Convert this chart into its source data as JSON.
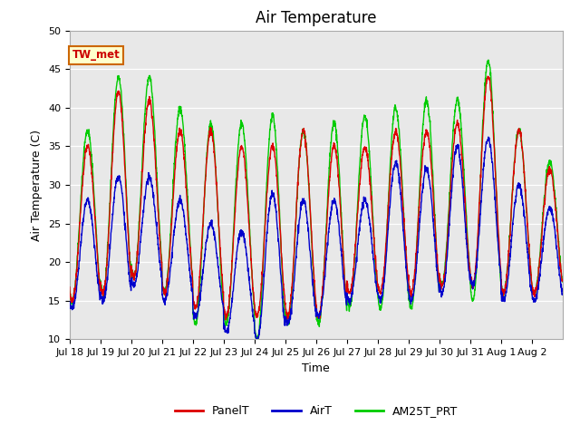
{
  "title": "Air Temperature",
  "xlabel": "Time",
  "ylabel": "Air Temperature (C)",
  "ylim": [
    10,
    50
  ],
  "tick_labels": [
    "Jul 18",
    "Jul 19",
    "Jul 20",
    "Jul 21",
    "Jul 22",
    "Jul 23",
    "Jul 24",
    "Jul 25",
    "Jul 26",
    "Jul 27",
    "Jul 28",
    "Jul 29",
    "Jul 30",
    "Jul 31",
    "Aug 1",
    "Aug 2"
  ],
  "annotation_text": "TW_met",
  "annotation_bg": "#ffffcc",
  "annotation_border": "#cc6600",
  "annotation_text_color": "#cc0000",
  "bg_color": "#e8e8e8",
  "line_colors": {
    "PanelT": "#dd0000",
    "AirT": "#0000cc",
    "AM25T_PRT": "#00cc00"
  },
  "legend_labels": [
    "PanelT",
    "AirT",
    "AM25T_PRT"
  ],
  "title_fontsize": 12,
  "axis_label_fontsize": 9,
  "tick_fontsize": 8,
  "panel_peaks": [
    35,
    42,
    41,
    37,
    37,
    35,
    35,
    37,
    35,
    35,
    37,
    37,
    38,
    44,
    37,
    32
  ],
  "panel_troughs": [
    15,
    16,
    18,
    16,
    14,
    13,
    13,
    13,
    13,
    16,
    16,
    16,
    17,
    17,
    16,
    16
  ],
  "air_peaks": [
    28,
    31,
    31,
    28,
    25,
    24,
    29,
    28,
    28,
    28,
    33,
    32,
    35,
    36,
    30,
    27
  ],
  "air_troughs": [
    14,
    15,
    17,
    15,
    13,
    11,
    10,
    12,
    13,
    15,
    15,
    15,
    16,
    17,
    15,
    15
  ],
  "am25_peaks": [
    37,
    44,
    44,
    40,
    38,
    38,
    39,
    37,
    38,
    39,
    40,
    41,
    41,
    46,
    37,
    33
  ],
  "am25_troughs": [
    15,
    16,
    18,
    16,
    12,
    12,
    10,
    12,
    12,
    14,
    14,
    14,
    17,
    15,
    16,
    16
  ]
}
